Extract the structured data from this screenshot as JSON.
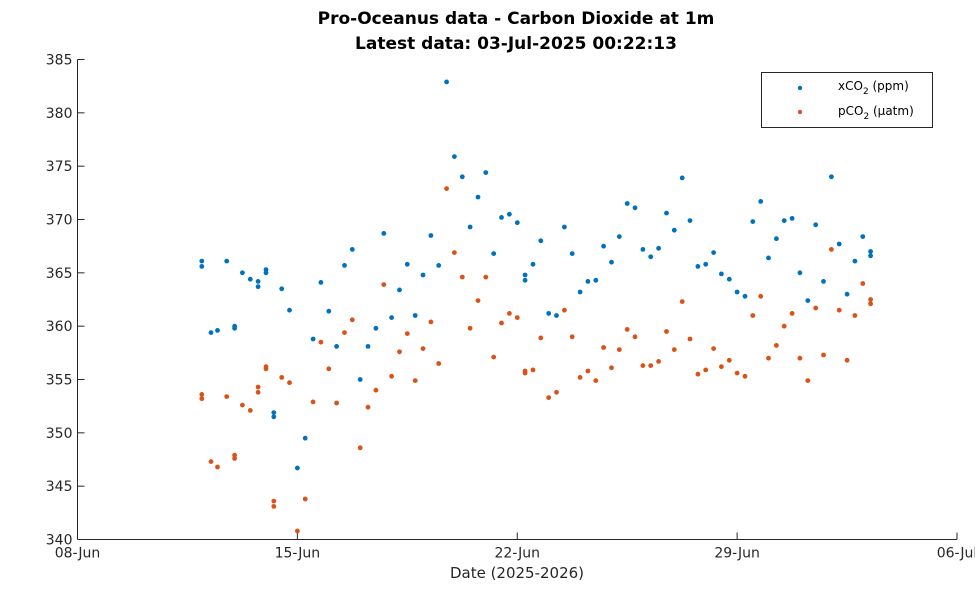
{
  "chart_data": {
    "type": "scatter",
    "title_line1": "Pro-Oceanus data - Carbon Dioxide at 1m",
    "title_line2": "Latest data: 03-Jul-2025 00:22:13",
    "xlabel": "Date (2025-2026)",
    "ylabel": "",
    "x_scale": "date",
    "xlim": [
      "2025-06-08",
      "2025-07-06"
    ],
    "ylim": [
      340,
      385
    ],
    "x_ticks": [
      "2025-06-08",
      "2025-06-15",
      "2025-06-22",
      "2025-06-29",
      "2025-07-06"
    ],
    "x_tick_labels": [
      "08-Jun",
      "15-Jun",
      "22-Jun",
      "29-Jun",
      "06-Jul"
    ],
    "y_ticks": [
      340,
      345,
      350,
      355,
      360,
      365,
      370,
      375,
      380,
      385
    ],
    "y_tick_labels": [
      "340",
      "345",
      "350",
      "355",
      "360",
      "365",
      "370",
      "375",
      "380",
      "385"
    ],
    "grid": false,
    "legend_position": "top-right",
    "series": [
      {
        "name": "xCO2 (ppm)",
        "legend_main": "xCO",
        "legend_sub": "2",
        "legend_rest": " (ppm)",
        "color": "#0072BD",
        "points": [
          [
            "2025-06-11 23:00",
            366.1
          ],
          [
            "2025-06-11 23:00",
            365.6
          ],
          [
            "2025-06-12 06:00",
            359.4
          ],
          [
            "2025-06-12 11:00",
            359.6
          ],
          [
            "2025-06-12 18:00",
            366.1
          ],
          [
            "2025-06-13 00:00",
            360.0
          ],
          [
            "2025-06-13 00:00",
            359.8
          ],
          [
            "2025-06-13 06:00",
            365.0
          ],
          [
            "2025-06-13 12:00",
            364.4
          ],
          [
            "2025-06-13 18:00",
            364.2
          ],
          [
            "2025-06-13 18:00",
            363.7
          ],
          [
            "2025-06-14 00:00",
            365.3
          ],
          [
            "2025-06-14 00:00",
            365.0
          ],
          [
            "2025-06-14 06:00",
            351.9
          ],
          [
            "2025-06-14 06:00",
            351.5
          ],
          [
            "2025-06-14 12:00",
            363.5
          ],
          [
            "2025-06-14 18:00",
            361.5
          ],
          [
            "2025-06-15 00:00",
            346.7
          ],
          [
            "2025-06-15 06:00",
            349.5
          ],
          [
            "2025-06-15 12:00",
            358.8
          ],
          [
            "2025-06-15 18:00",
            364.1
          ],
          [
            "2025-06-16 00:00",
            361.4
          ],
          [
            "2025-06-16 06:00",
            358.1
          ],
          [
            "2025-06-16 12:00",
            365.7
          ],
          [
            "2025-06-16 18:00",
            367.2
          ],
          [
            "2025-06-17 00:00",
            355.0
          ],
          [
            "2025-06-17 06:00",
            358.1
          ],
          [
            "2025-06-17 12:00",
            359.8
          ],
          [
            "2025-06-17 18:00",
            368.7
          ],
          [
            "2025-06-18 00:00",
            360.8
          ],
          [
            "2025-06-18 06:00",
            363.4
          ],
          [
            "2025-06-18 12:00",
            365.8
          ],
          [
            "2025-06-18 18:00",
            361.0
          ],
          [
            "2025-06-19 00:00",
            364.8
          ],
          [
            "2025-06-19 06:00",
            368.5
          ],
          [
            "2025-06-19 12:00",
            365.7
          ],
          [
            "2025-06-19 18:00",
            382.9
          ],
          [
            "2025-06-20 00:00",
            375.9
          ],
          [
            "2025-06-20 06:00",
            374.0
          ],
          [
            "2025-06-20 12:00",
            369.3
          ],
          [
            "2025-06-20 18:00",
            372.1
          ],
          [
            "2025-06-21 00:00",
            374.4
          ],
          [
            "2025-06-21 06:00",
            366.8
          ],
          [
            "2025-06-21 12:00",
            370.2
          ],
          [
            "2025-06-21 18:00",
            370.5
          ],
          [
            "2025-06-22 00:00",
            369.7
          ],
          [
            "2025-06-22 06:00",
            364.8
          ],
          [
            "2025-06-22 06:00",
            364.3
          ],
          [
            "2025-06-22 12:00",
            365.8
          ],
          [
            "2025-06-22 18:00",
            368.0
          ],
          [
            "2025-06-23 00:00",
            361.2
          ],
          [
            "2025-06-23 06:00",
            361.0
          ],
          [
            "2025-06-23 12:00",
            369.3
          ],
          [
            "2025-06-23 18:00",
            366.8
          ],
          [
            "2025-06-24 00:00",
            363.2
          ],
          [
            "2025-06-24 06:00",
            364.2
          ],
          [
            "2025-06-24 12:00",
            364.3
          ],
          [
            "2025-06-24 18:00",
            367.5
          ],
          [
            "2025-06-25 00:00",
            366.0
          ],
          [
            "2025-06-25 06:00",
            368.4
          ],
          [
            "2025-06-25 12:00",
            371.5
          ],
          [
            "2025-06-25 18:00",
            371.1
          ],
          [
            "2025-06-26 00:00",
            367.2
          ],
          [
            "2025-06-26 06:00",
            366.5
          ],
          [
            "2025-06-26 12:00",
            367.3
          ],
          [
            "2025-06-26 18:00",
            370.6
          ],
          [
            "2025-06-27 00:00",
            369.0
          ],
          [
            "2025-06-27 06:00",
            373.9
          ],
          [
            "2025-06-27 12:00",
            369.9
          ],
          [
            "2025-06-27 18:00",
            365.6
          ],
          [
            "2025-06-28 00:00",
            365.8
          ],
          [
            "2025-06-28 06:00",
            366.9
          ],
          [
            "2025-06-28 12:00",
            364.9
          ],
          [
            "2025-06-28 18:00",
            364.4
          ],
          [
            "2025-06-29 00:00",
            363.2
          ],
          [
            "2025-06-29 06:00",
            362.8
          ],
          [
            "2025-06-29 12:00",
            369.8
          ],
          [
            "2025-06-29 18:00",
            371.7
          ],
          [
            "2025-06-30 00:00",
            366.4
          ],
          [
            "2025-06-30 06:00",
            368.2
          ],
          [
            "2025-06-30 12:00",
            369.9
          ],
          [
            "2025-06-30 18:00",
            370.1
          ],
          [
            "2025-07-01 00:00",
            365.0
          ],
          [
            "2025-07-01 06:00",
            362.4
          ],
          [
            "2025-07-01 12:00",
            369.5
          ],
          [
            "2025-07-01 18:00",
            364.2
          ],
          [
            "2025-07-02 00:00",
            374.0
          ],
          [
            "2025-07-02 06:00",
            367.7
          ],
          [
            "2025-07-02 12:00",
            363.0
          ],
          [
            "2025-07-02 18:00",
            366.1
          ],
          [
            "2025-07-03 00:00",
            368.4
          ],
          [
            "2025-07-03 06:00",
            367.0
          ],
          [
            "2025-07-03 06:00",
            366.6
          ]
        ]
      },
      {
        "name": "pCO2 (µatm)",
        "legend_main": "pCO",
        "legend_sub": "2",
        "legend_rest": " (µatm)",
        "color": "#D95319",
        "points": [
          [
            "2025-06-11 23:00",
            353.6
          ],
          [
            "2025-06-11 23:00",
            353.2
          ],
          [
            "2025-06-12 06:00",
            347.3
          ],
          [
            "2025-06-12 11:00",
            346.8
          ],
          [
            "2025-06-12 18:00",
            353.4
          ],
          [
            "2025-06-13 00:00",
            347.9
          ],
          [
            "2025-06-13 00:00",
            347.6
          ],
          [
            "2025-06-13 06:00",
            352.6
          ],
          [
            "2025-06-13 12:00",
            352.1
          ],
          [
            "2025-06-13 18:00",
            354.3
          ],
          [
            "2025-06-13 18:00",
            353.8
          ],
          [
            "2025-06-14 00:00",
            356.2
          ],
          [
            "2025-06-14 00:00",
            356.0
          ],
          [
            "2025-06-14 06:00",
            343.6
          ],
          [
            "2025-06-14 06:00",
            343.1
          ],
          [
            "2025-06-14 12:00",
            355.2
          ],
          [
            "2025-06-14 18:00",
            354.7
          ],
          [
            "2025-06-15 00:00",
            340.8
          ],
          [
            "2025-06-15 06:00",
            343.8
          ],
          [
            "2025-06-15 12:00",
            352.9
          ],
          [
            "2025-06-15 18:00",
            358.5
          ],
          [
            "2025-06-16 00:00",
            356.0
          ],
          [
            "2025-06-16 06:00",
            352.8
          ],
          [
            "2025-06-16 12:00",
            359.4
          ],
          [
            "2025-06-16 18:00",
            360.6
          ],
          [
            "2025-06-17 00:00",
            348.6
          ],
          [
            "2025-06-17 06:00",
            352.4
          ],
          [
            "2025-06-17 12:00",
            354.0
          ],
          [
            "2025-06-17 18:00",
            363.9
          ],
          [
            "2025-06-18 00:00",
            355.3
          ],
          [
            "2025-06-18 06:00",
            357.6
          ],
          [
            "2025-06-18 12:00",
            359.3
          ],
          [
            "2025-06-18 18:00",
            354.9
          ],
          [
            "2025-06-19 00:00",
            357.9
          ],
          [
            "2025-06-19 06:00",
            360.4
          ],
          [
            "2025-06-19 12:00",
            356.5
          ],
          [
            "2025-06-19 18:00",
            372.9
          ],
          [
            "2025-06-20 00:00",
            366.9
          ],
          [
            "2025-06-20 06:00",
            364.6
          ],
          [
            "2025-06-20 12:00",
            359.8
          ],
          [
            "2025-06-20 18:00",
            362.4
          ],
          [
            "2025-06-21 00:00",
            364.6
          ],
          [
            "2025-06-21 06:00",
            357.1
          ],
          [
            "2025-06-21 12:00",
            360.3
          ],
          [
            "2025-06-21 18:00",
            361.2
          ],
          [
            "2025-06-22 00:00",
            360.8
          ],
          [
            "2025-06-22 06:00",
            355.8
          ],
          [
            "2025-06-22 06:00",
            355.6
          ],
          [
            "2025-06-22 12:00",
            355.9
          ],
          [
            "2025-06-22 18:00",
            358.9
          ],
          [
            "2025-06-23 00:00",
            353.3
          ],
          [
            "2025-06-23 06:00",
            353.8
          ],
          [
            "2025-06-23 12:00",
            361.5
          ],
          [
            "2025-06-23 18:00",
            359.0
          ],
          [
            "2025-06-24 00:00",
            355.2
          ],
          [
            "2025-06-24 06:00",
            355.8
          ],
          [
            "2025-06-24 12:00",
            354.9
          ],
          [
            "2025-06-24 18:00",
            358.0
          ],
          [
            "2025-06-25 00:00",
            356.1
          ],
          [
            "2025-06-25 06:00",
            357.8
          ],
          [
            "2025-06-25 12:00",
            359.7
          ],
          [
            "2025-06-25 18:00",
            359.0
          ],
          [
            "2025-06-26 00:00",
            356.3
          ],
          [
            "2025-06-26 06:00",
            356.3
          ],
          [
            "2025-06-26 12:00",
            356.7
          ],
          [
            "2025-06-26 18:00",
            359.5
          ],
          [
            "2025-06-27 00:00",
            357.8
          ],
          [
            "2025-06-27 06:00",
            362.3
          ],
          [
            "2025-06-27 12:00",
            358.8
          ],
          [
            "2025-06-27 18:00",
            355.5
          ],
          [
            "2025-06-28 00:00",
            355.9
          ],
          [
            "2025-06-28 06:00",
            357.9
          ],
          [
            "2025-06-28 12:00",
            356.2
          ],
          [
            "2025-06-28 18:00",
            356.8
          ],
          [
            "2025-06-29 00:00",
            355.6
          ],
          [
            "2025-06-29 06:00",
            355.3
          ],
          [
            "2025-06-29 12:00",
            361.0
          ],
          [
            "2025-06-29 18:00",
            362.8
          ],
          [
            "2025-06-30 00:00",
            357.0
          ],
          [
            "2025-06-30 06:00",
            358.2
          ],
          [
            "2025-06-30 12:00",
            360.0
          ],
          [
            "2025-06-30 18:00",
            361.2
          ],
          [
            "2025-07-01 00:00",
            357.0
          ],
          [
            "2025-07-01 06:00",
            354.9
          ],
          [
            "2025-07-01 12:00",
            361.7
          ],
          [
            "2025-07-01 18:00",
            357.3
          ],
          [
            "2025-07-02 00:00",
            367.2
          ],
          [
            "2025-07-02 06:00",
            361.5
          ],
          [
            "2025-07-02 12:00",
            356.8
          ],
          [
            "2025-07-02 18:00",
            361.0
          ],
          [
            "2025-07-03 00:00",
            364.0
          ],
          [
            "2025-07-03 06:00",
            362.5
          ],
          [
            "2025-07-03 06:00",
            362.1
          ]
        ]
      }
    ]
  }
}
